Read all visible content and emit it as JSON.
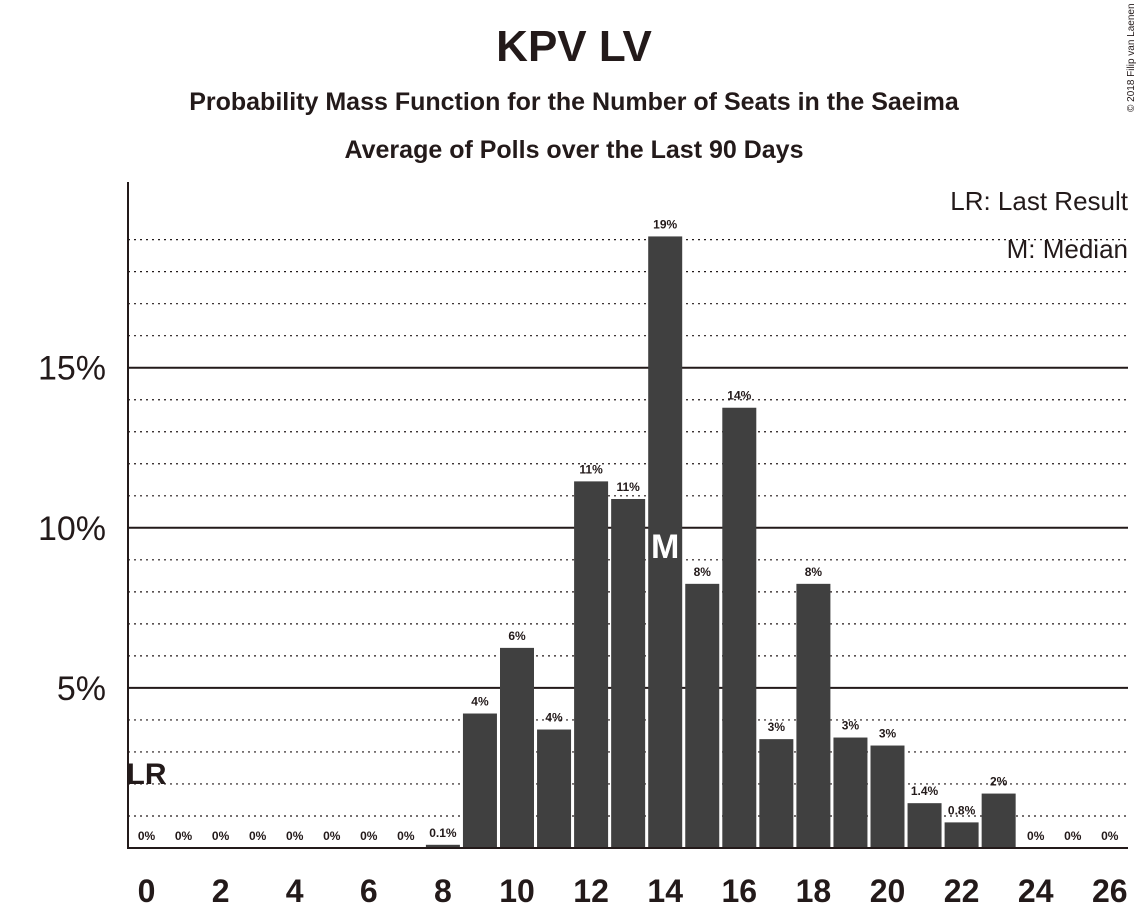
{
  "chart_data": {
    "type": "bar",
    "title": "KPV LV",
    "subtitle": "Probability Mass Function for the Number of Seats in the Saeima",
    "subtitle2": "Average of Polls over the Last 90 Days",
    "copyright": "© 2018 Filip van Laenen",
    "categories": [
      0,
      1,
      2,
      3,
      4,
      5,
      6,
      7,
      8,
      9,
      10,
      11,
      12,
      13,
      14,
      15,
      16,
      17,
      18,
      19,
      20,
      21,
      22,
      23,
      24,
      25,
      26
    ],
    "values": [
      0,
      0,
      0,
      0,
      0,
      0,
      0,
      0,
      0.1,
      4.2,
      6.25,
      3.7,
      11.45,
      10.9,
      19.1,
      8.25,
      13.75,
      3.4,
      8.25,
      3.45,
      3.2,
      1.4,
      0.8,
      1.7,
      0,
      0,
      0
    ],
    "labels": [
      "0%",
      "0%",
      "0%",
      "0%",
      "0%",
      "0%",
      "0%",
      "0%",
      "0.1%",
      "4%",
      "6%",
      "4%",
      "11%",
      "11%",
      "19%",
      "8%",
      "14%",
      "3%",
      "8%",
      "3%",
      "3%",
      "1.4%",
      "0.8%",
      "2%",
      "0%",
      "0%",
      "0%"
    ],
    "x_tick_labels": [
      "0",
      "2",
      "4",
      "6",
      "8",
      "10",
      "12",
      "14",
      "16",
      "18",
      "20",
      "22",
      "24",
      "26"
    ],
    "y_tick_labels": [
      "5%",
      "10%",
      "15%"
    ],
    "y_ticks": [
      5,
      10,
      15
    ],
    "ylim": [
      0,
      20.8
    ],
    "grid": true,
    "last_result": {
      "seats": 0,
      "label": "LR"
    },
    "median": {
      "seats": 14,
      "label": "M"
    },
    "legend": {
      "position": "top-right",
      "items": [
        "LR: Last Result",
        "M: Median"
      ]
    },
    "colors": {
      "bar": "#404040",
      "text": "#231a1a",
      "grid": "#231a1a"
    }
  }
}
